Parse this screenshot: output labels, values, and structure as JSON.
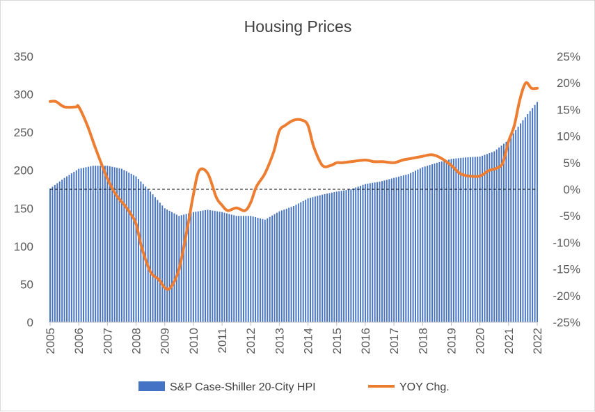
{
  "chart_data": {
    "type": "bar+line",
    "title": "Housing Prices",
    "x_ticks": [
      "2005",
      "2006",
      "2007",
      "2008",
      "2009",
      "2010",
      "2011",
      "2012",
      "2013",
      "2014",
      "2015",
      "2016",
      "2017",
      "2018",
      "2019",
      "2020",
      "2021",
      "2022"
    ],
    "y_left": {
      "min": 0,
      "max": 350,
      "step": 50,
      "ticks": [
        "0",
        "50",
        "100",
        "150",
        "200",
        "250",
        "300",
        "350"
      ]
    },
    "y_right": {
      "min": -25,
      "max": 25,
      "step": 5,
      "ticks": [
        "-25%",
        "-20%",
        "-15%",
        "-10%",
        "-5%",
        "0%",
        "5%",
        "10%",
        "15%",
        "20%",
        "25%"
      ]
    },
    "zero_line": "dashed at 0% (right axis)",
    "legend_position": "bottom",
    "colors": {
      "bars": "#4472c4",
      "line": "#ed7d31"
    },
    "series": [
      {
        "name": "S&P Case-Shiller 20-City HPI",
        "type": "bar",
        "axis": "left",
        "frequency": "monthly",
        "x": [
          2005.0,
          2005.5,
          2006.0,
          2006.5,
          2007.0,
          2007.5,
          2008.0,
          2008.5,
          2009.0,
          2009.5,
          2010.0,
          2010.5,
          2011.0,
          2011.5,
          2012.0,
          2012.5,
          2013.0,
          2013.5,
          2014.0,
          2014.5,
          2015.0,
          2015.5,
          2016.0,
          2016.5,
          2017.0,
          2017.5,
          2018.0,
          2018.5,
          2019.0,
          2019.5,
          2020.0,
          2020.5,
          2021.0,
          2021.5,
          2022.0
        ],
        "values": [
          176,
          190,
          202,
          206,
          206,
          202,
          192,
          172,
          150,
          140,
          145,
          148,
          145,
          140,
          140,
          135,
          146,
          153,
          163,
          168,
          172,
          175,
          182,
          185,
          190,
          195,
          204,
          210,
          215,
          217,
          218,
          225,
          240,
          266,
          290
        ]
      },
      {
        "name": "YOY Chg.",
        "type": "line",
        "axis": "right",
        "unit": "%",
        "x": [
          2005.0,
          2005.2,
          2005.5,
          2005.9,
          2006.0,
          2006.3,
          2006.6,
          2007.0,
          2007.3,
          2007.6,
          2007.8,
          2008.0,
          2008.2,
          2008.5,
          2008.8,
          2009.0,
          2009.2,
          2009.5,
          2009.8,
          2010.0,
          2010.2,
          2010.5,
          2010.8,
          2011.0,
          2011.2,
          2011.5,
          2011.8,
          2012.0,
          2012.2,
          2012.5,
          2012.8,
          2013.0,
          2013.2,
          2013.5,
          2013.8,
          2014.0,
          2014.2,
          2014.5,
          2014.8,
          2015.0,
          2015.2,
          2015.5,
          2016.0,
          2016.3,
          2016.6,
          2017.0,
          2017.3,
          2017.6,
          2018.0,
          2018.3,
          2018.6,
          2019.0,
          2019.3,
          2019.6,
          2020.0,
          2020.3,
          2020.6,
          2020.8,
          2021.0,
          2021.2,
          2021.4,
          2021.6,
          2021.8,
          2022.0
        ],
        "values": [
          16.5,
          16.5,
          15.5,
          15.5,
          15.5,
          12.0,
          7.5,
          2.0,
          -1.0,
          -3.0,
          -4.5,
          -6.5,
          -11.0,
          -15.5,
          -17.0,
          -18.5,
          -18.5,
          -15.0,
          -7.0,
          -1.0,
          3.5,
          3.0,
          -1.5,
          -3.0,
          -4.0,
          -3.5,
          -4.0,
          -2.5,
          0.5,
          3.0,
          7.0,
          11.0,
          12.0,
          13.0,
          13.0,
          12.0,
          8.0,
          4.5,
          4.5,
          5.0,
          5.0,
          5.2,
          5.5,
          5.2,
          5.2,
          5.0,
          5.5,
          5.8,
          6.2,
          6.5,
          6.0,
          4.5,
          3.0,
          2.5,
          2.5,
          3.5,
          4.0,
          5.0,
          9.0,
          12.0,
          17.0,
          20.0,
          19.0,
          19.0
        ]
      }
    ]
  }
}
